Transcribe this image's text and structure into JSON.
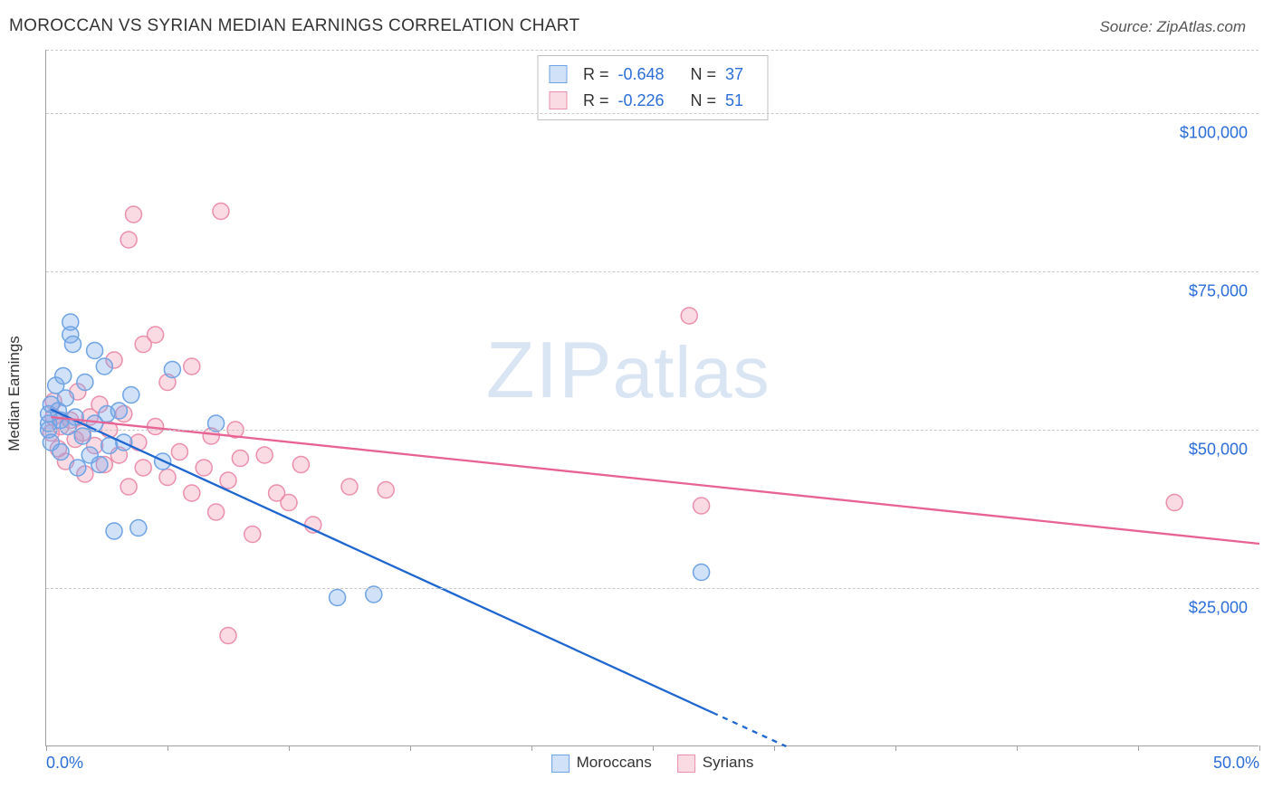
{
  "header": {
    "title": "MOROCCAN VS SYRIAN MEDIAN EARNINGS CORRELATION CHART",
    "source": "Source: ZipAtlas.com"
  },
  "watermark": {
    "text_zip": "ZIP",
    "text_atlas": "atlas"
  },
  "chart": {
    "type": "scatter",
    "ylabel": "Median Earnings",
    "xlim": [
      0,
      50
    ],
    "ylim": [
      0,
      110000
    ],
    "xtick_positions": [
      0,
      5,
      10,
      15,
      20,
      25,
      30,
      35,
      40,
      45,
      50
    ],
    "xtick_labels": {
      "0": "0.0%",
      "50": "50.0%"
    },
    "ytick_positions": [
      25000,
      50000,
      75000,
      100000
    ],
    "ytick_labels": [
      "$25,000",
      "$50,000",
      "$75,000",
      "$100,000"
    ],
    "grid_color": "#c8c8c8",
    "axis_color": "#a0a0a0",
    "background_color": "#ffffff",
    "label_color": "#2b6ed9",
    "marker_radius": 9,
    "marker_stroke_width": 1.5,
    "line_width": 2.3,
    "series": [
      {
        "name": "Moroccans",
        "fill": "rgba(120,170,235,0.35)",
        "stroke": "#6ea3e4",
        "line_color": "#1e66d0",
        "R": "-0.648",
        "N": "37",
        "trend": {
          "x1": 0.2,
          "y1": 53200,
          "x2": 30.5,
          "y2": 0
        },
        "trend_dash_tail": true,
        "points": [
          [
            0.1,
            50000
          ],
          [
            0.1,
            51000
          ],
          [
            0.1,
            52500
          ],
          [
            0.2,
            48000
          ],
          [
            0.2,
            54000
          ],
          [
            0.4,
            57000
          ],
          [
            0.5,
            53000
          ],
          [
            0.6,
            51500
          ],
          [
            0.6,
            46500
          ],
          [
            0.7,
            58500
          ],
          [
            0.8,
            55000
          ],
          [
            0.9,
            50500
          ],
          [
            1.0,
            65000
          ],
          [
            1.0,
            67000
          ],
          [
            1.1,
            63500
          ],
          [
            1.2,
            52000
          ],
          [
            1.3,
            44000
          ],
          [
            1.5,
            49000
          ],
          [
            1.6,
            57500
          ],
          [
            1.8,
            46000
          ],
          [
            2.0,
            62500
          ],
          [
            2.0,
            51000
          ],
          [
            2.2,
            44500
          ],
          [
            2.4,
            60000
          ],
          [
            2.5,
            52500
          ],
          [
            2.6,
            47500
          ],
          [
            2.8,
            34000
          ],
          [
            3.0,
            53000
          ],
          [
            3.2,
            48000
          ],
          [
            3.5,
            55500
          ],
          [
            3.8,
            34500
          ],
          [
            4.8,
            45000
          ],
          [
            5.2,
            59500
          ],
          [
            7.0,
            51000
          ],
          [
            12.0,
            23500
          ],
          [
            13.5,
            24000
          ],
          [
            27.0,
            27500
          ]
        ]
      },
      {
        "name": "Syrians",
        "fill": "rgba(240,150,175,0.35)",
        "stroke": "#ec8fac",
        "line_color": "#e86294",
        "R": "-0.226",
        "N": "51",
        "trend": {
          "x1": 0.2,
          "y1": 52000,
          "x2": 50.0,
          "y2": 32000
        },
        "trend_dash_tail": false,
        "points": [
          [
            0.2,
            49500
          ],
          [
            0.3,
            52000
          ],
          [
            0.3,
            54500
          ],
          [
            0.5,
            47000
          ],
          [
            0.6,
            50500
          ],
          [
            0.8,
            45000
          ],
          [
            1.0,
            51500
          ],
          [
            1.2,
            48500
          ],
          [
            1.3,
            56000
          ],
          [
            1.5,
            49500
          ],
          [
            1.6,
            43000
          ],
          [
            1.8,
            52000
          ],
          [
            2.0,
            47500
          ],
          [
            2.2,
            54000
          ],
          [
            2.4,
            44500
          ],
          [
            2.6,
            50000
          ],
          [
            2.8,
            61000
          ],
          [
            3.0,
            46000
          ],
          [
            3.2,
            52500
          ],
          [
            3.4,
            41000
          ],
          [
            3.4,
            80000
          ],
          [
            3.6,
            84000
          ],
          [
            3.8,
            48000
          ],
          [
            4.0,
            63500
          ],
          [
            4.0,
            44000
          ],
          [
            4.5,
            50500
          ],
          [
            4.5,
            65000
          ],
          [
            5.0,
            42500
          ],
          [
            5.0,
            57500
          ],
          [
            5.5,
            46500
          ],
          [
            6.0,
            40000
          ],
          [
            6.0,
            60000
          ],
          [
            6.5,
            44000
          ],
          [
            6.8,
            49000
          ],
          [
            7.0,
            37000
          ],
          [
            7.2,
            84500
          ],
          [
            7.5,
            42000
          ],
          [
            7.5,
            17500
          ],
          [
            7.8,
            50000
          ],
          [
            8.0,
            45500
          ],
          [
            8.5,
            33500
          ],
          [
            9.0,
            46000
          ],
          [
            9.5,
            40000
          ],
          [
            10.0,
            38500
          ],
          [
            10.5,
            44500
          ],
          [
            11.0,
            35000
          ],
          [
            12.5,
            41000
          ],
          [
            14.0,
            40500
          ],
          [
            26.5,
            68000
          ],
          [
            27.0,
            38000
          ],
          [
            46.5,
            38500
          ]
        ]
      }
    ]
  }
}
